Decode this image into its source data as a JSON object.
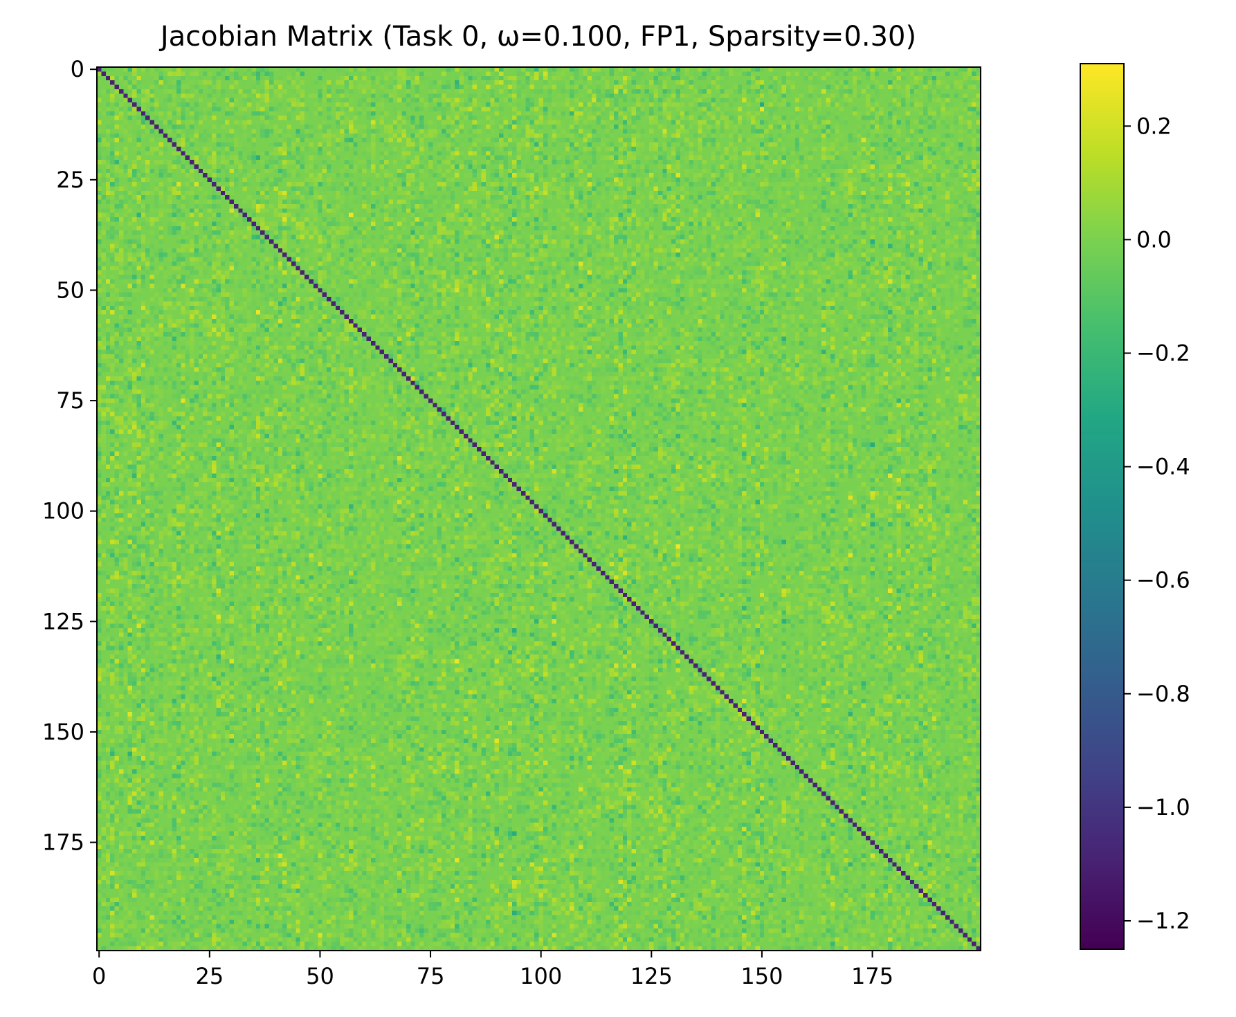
{
  "chart_data": {
    "type": "heatmap",
    "title": "Jacobian Matrix (Task 0, ω=0.100, FP1, Sparsity=0.30)",
    "xlabel": "",
    "ylabel": "",
    "shape": [
      200,
      200
    ],
    "xlim": [
      0,
      199
    ],
    "ylim": [
      199,
      0
    ],
    "x_ticks": [
      0,
      25,
      50,
      75,
      100,
      125,
      150,
      175
    ],
    "y_ticks": [
      0,
      25,
      50,
      75,
      100,
      125,
      150,
      175
    ],
    "x_tick_labels": [
      "0",
      "25",
      "50",
      "75",
      "100",
      "125",
      "150",
      "175"
    ],
    "y_tick_labels": [
      "0",
      "25",
      "50",
      "75",
      "100",
      "125",
      "150",
      "175"
    ],
    "diagonal_value": -1.1,
    "offdiagonal_mean": 0.0,
    "offdiagonal_range": [
      -0.3,
      0.3
    ],
    "sparsity": 0.3,
    "colormap": "viridis",
    "colorbar": {
      "vmin": -1.25,
      "vmax": 0.31,
      "ticks": [
        0.2,
        0.0,
        -0.2,
        -0.4,
        -0.6,
        -0.8,
        -1.0,
        -1.2
      ],
      "tick_labels": [
        "0.2",
        "0.0",
        "−0.2",
        "−0.4",
        "−0.6",
        "−0.8",
        "−1.0",
        "−1.2"
      ]
    },
    "grid": false
  }
}
